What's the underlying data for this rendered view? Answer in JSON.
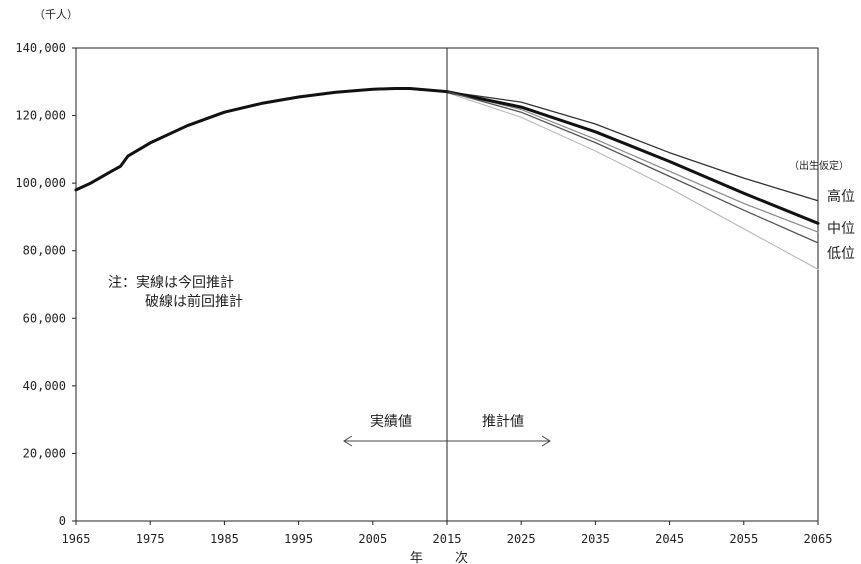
{
  "chart_data": {
    "type": "line",
    "unit_label": "（千人）",
    "xlabel": "年 次",
    "xlim": [
      1965,
      2065
    ],
    "ylim": [
      0,
      140000
    ],
    "x_ticks": [
      "1965",
      "1975",
      "1985",
      "1995",
      "2005",
      "2015",
      "2025",
      "2035",
      "2045",
      "2055",
      "2065"
    ],
    "y_ticks": [
      "0",
      "20,000",
      "40,000",
      "60,000",
      "80,000",
      "100,000",
      "120,000",
      "140,000"
    ],
    "grid": false,
    "divider_year": 2015,
    "arrow_left_label": "実績値",
    "arrow_right_label": "推計値",
    "note_lines": [
      "注：実線は今回推計",
      "破線は前回推計"
    ],
    "assumption_title": "（出生仮定）",
    "series": [
      {
        "name": "実績値",
        "role": "actual",
        "color": "#111111",
        "x": [
          1965,
          1967,
          1970,
          1971,
          1972,
          1975,
          1980,
          1985,
          1990,
          1995,
          2000,
          2005,
          2008,
          2010,
          2015
        ],
        "y": [
          98000,
          100000,
          103800,
          105000,
          108000,
          111900,
          117000,
          121000,
          123600,
          125500,
          126900,
          127800,
          128000,
          128000,
          127100
        ]
      },
      {
        "name": "高位",
        "role": "current",
        "color": "#333333",
        "x": [
          2015,
          2025,
          2035,
          2045,
          2055,
          2065
        ],
        "y": [
          127100,
          124000,
          117500,
          109000,
          101500,
          94800
        ]
      },
      {
        "name": "中位",
        "role": "current",
        "color": "#111111",
        "x": [
          2015,
          2025,
          2035,
          2045,
          2055,
          2065
        ],
        "y": [
          127100,
          122500,
          115200,
          106400,
          97000,
          88100
        ]
      },
      {
        "name": "低位",
        "role": "current",
        "color": "#555555",
        "x": [
          2015,
          2025,
          2035,
          2045,
          2055,
          2065
        ],
        "y": [
          127100,
          121000,
          112000,
          102000,
          92000,
          82300
        ]
      },
      {
        "role": "previous",
        "color": "#8a8a8a",
        "x": [
          2015,
          2025,
          2035,
          2045,
          2055,
          2065
        ],
        "y": [
          127100,
          121800,
          113000,
          103500,
          94000,
          85500
        ]
      },
      {
        "role": "previous",
        "color": "#bdbdbd",
        "x": [
          2015,
          2025,
          2035,
          2045,
          2055,
          2065
        ],
        "y": [
          126800,
          119500,
          109500,
          98500,
          86500,
          74500
        ]
      }
    ]
  }
}
